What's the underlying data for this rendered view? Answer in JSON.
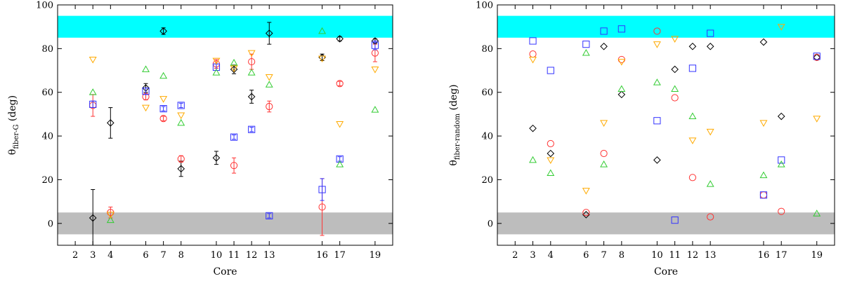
{
  "chart_data": [
    {
      "id": "left",
      "type": "scatter",
      "xlabel": "Core",
      "ylabel_main": "θ",
      "ylabel_sub": "fiber-G",
      "ylabel_unit": " (deg)",
      "ylim": [
        -10,
        100
      ],
      "yticks": [
        0,
        20,
        40,
        60,
        80,
        100
      ],
      "xlim": [
        1,
        20
      ],
      "xticks": [
        2,
        3,
        4,
        6,
        7,
        8,
        10,
        11,
        12,
        13,
        16,
        17,
        19
      ],
      "bands": [
        {
          "name": "parallel-band",
          "y0": 85,
          "y1": 95,
          "color": "#00ffff"
        },
        {
          "name": "perpendicular-band",
          "y0": -5,
          "y1": 5,
          "color": "#bdbdbd"
        }
      ],
      "series": [
        {
          "name": "diamond",
          "marker": "diamond",
          "color": "#000000",
          "points": [
            {
              "x": 3,
              "y": 2.5,
              "err": 13
            },
            {
              "x": 4,
              "y": 46,
              "err": 7
            },
            {
              "x": 6,
              "y": 62,
              "err": 2
            },
            {
              "x": 7,
              "y": 88,
              "err": 1.5
            },
            {
              "x": 8,
              "y": 25,
              "err": 3.5
            },
            {
              "x": 10,
              "y": 30,
              "err": 3
            },
            {
              "x": 11,
              "y": 70.5,
              "err": 2
            },
            {
              "x": 12,
              "y": 58,
              "err": 3
            },
            {
              "x": 13,
              "y": 87,
              "err": 5
            },
            {
              "x": 16,
              "y": 76,
              "err": 1.5
            },
            {
              "x": 17,
              "y": 84.5,
              "err": 1
            },
            {
              "x": 19,
              "y": 83.5,
              "err": 1
            }
          ]
        },
        {
          "name": "circle",
          "marker": "circle",
          "color": "#ff3333",
          "points": [
            {
              "x": 3,
              "y": 54,
              "err": 5
            },
            {
              "x": 4,
              "y": 5,
              "err": 2.5
            },
            {
              "x": 6,
              "y": 58,
              "err": 1.5
            },
            {
              "x": 7,
              "y": 48,
              "err": 1
            },
            {
              "x": 8,
              "y": 29.5,
              "err": 1.5
            },
            {
              "x": 10,
              "y": 73,
              "err": 2
            },
            {
              "x": 11,
              "y": 26.5,
              "err": 3.5
            },
            {
              "x": 12,
              "y": 74,
              "err": 3.5
            },
            {
              "x": 13,
              "y": 53.5,
              "err": 2.5
            },
            {
              "x": 16,
              "y": 7.5,
              "err": 13
            },
            {
              "x": 17,
              "y": 64,
              "err": 1
            },
            {
              "x": 19,
              "y": 78,
              "err": 4
            }
          ]
        },
        {
          "name": "square",
          "marker": "square",
          "color": "#3333ff",
          "points": [
            {
              "x": 3,
              "y": 54.5,
              "err": 1.5
            },
            {
              "x": 6,
              "y": 60.5,
              "err": 1.5
            },
            {
              "x": 7,
              "y": 52.5,
              "err": 1
            },
            {
              "x": 8,
              "y": 54,
              "err": 1
            },
            {
              "x": 10,
              "y": 71.5,
              "err": 1.5
            },
            {
              "x": 11,
              "y": 39.5,
              "err": 1
            },
            {
              "x": 12,
              "y": 43,
              "err": 1
            },
            {
              "x": 13,
              "y": 3.5,
              "err": 1
            },
            {
              "x": 16,
              "y": 15.5,
              "err": 5
            },
            {
              "x": 17,
              "y": 29.5,
              "err": 1
            },
            {
              "x": 19,
              "y": 81.5,
              "err": 2
            }
          ]
        },
        {
          "name": "triangle-up",
          "marker": "triangle-up",
          "color": "#33cc33",
          "points": [
            {
              "x": 3,
              "y": 60
            },
            {
              "x": 4,
              "y": 1.5
            },
            {
              "x": 6,
              "y": 70.5
            },
            {
              "x": 7,
              "y": 67.5
            },
            {
              "x": 8,
              "y": 46
            },
            {
              "x": 10,
              "y": 69
            },
            {
              "x": 11,
              "y": 73.5
            },
            {
              "x": 12,
              "y": 69
            },
            {
              "x": 13,
              "y": 63.5
            },
            {
              "x": 16,
              "y": 88
            },
            {
              "x": 17,
              "y": 27
            },
            {
              "x": 19,
              "y": 52
            }
          ]
        },
        {
          "name": "triangle-down",
          "marker": "triangle-down",
          "color": "#ffaa00",
          "points": [
            {
              "x": 3,
              "y": 75
            },
            {
              "x": 4,
              "y": 4
            },
            {
              "x": 6,
              "y": 53
            },
            {
              "x": 7,
              "y": 57
            },
            {
              "x": 8,
              "y": 49.5
            },
            {
              "x": 10,
              "y": 74.5
            },
            {
              "x": 11,
              "y": 71
            },
            {
              "x": 12,
              "y": 78
            },
            {
              "x": 13,
              "y": 67
            },
            {
              "x": 16,
              "y": 75.5
            },
            {
              "x": 17,
              "y": 45.5
            },
            {
              "x": 19,
              "y": 70.5
            }
          ]
        }
      ]
    },
    {
      "id": "right",
      "type": "scatter",
      "xlabel": "Core",
      "ylabel_main": "θ",
      "ylabel_sub": "fiber-random",
      "ylabel_unit": " (deg)",
      "ylim": [
        -10,
        100
      ],
      "yticks": [
        0,
        20,
        40,
        60,
        80,
        100
      ],
      "xlim": [
        1,
        20
      ],
      "xticks": [
        2,
        3,
        4,
        6,
        7,
        8,
        10,
        11,
        12,
        13,
        16,
        17,
        19
      ],
      "bands": [
        {
          "name": "parallel-band",
          "y0": 85,
          "y1": 95,
          "color": "#00ffff"
        },
        {
          "name": "perpendicular-band",
          "y0": -5,
          "y1": 5,
          "color": "#bdbdbd"
        }
      ],
      "series": [
        {
          "name": "diamond",
          "marker": "diamond",
          "color": "#000000",
          "points": [
            {
              "x": 3,
              "y": 43.5
            },
            {
              "x": 4,
              "y": 32
            },
            {
              "x": 6,
              "y": 4
            },
            {
              "x": 7,
              "y": 81
            },
            {
              "x": 8,
              "y": 59
            },
            {
              "x": 10,
              "y": 29
            },
            {
              "x": 11,
              "y": 70.5
            },
            {
              "x": 12,
              "y": 81
            },
            {
              "x": 13,
              "y": 81
            },
            {
              "x": 16,
              "y": 83
            },
            {
              "x": 17,
              "y": 49
            },
            {
              "x": 19,
              "y": 76
            }
          ]
        },
        {
          "name": "circle",
          "marker": "circle",
          "color": "#ff3333",
          "points": [
            {
              "x": 3,
              "y": 77.5
            },
            {
              "x": 4,
              "y": 36.5
            },
            {
              "x": 6,
              "y": 5
            },
            {
              "x": 7,
              "y": 32
            },
            {
              "x": 8,
              "y": 75
            },
            {
              "x": 10,
              "y": 88
            },
            {
              "x": 11,
              "y": 57.5
            },
            {
              "x": 12,
              "y": 21
            },
            {
              "x": 13,
              "y": 3
            },
            {
              "x": 16,
              "y": 13
            },
            {
              "x": 17,
              "y": 5.5
            },
            {
              "x": 19,
              "y": 76
            }
          ]
        },
        {
          "name": "square",
          "marker": "square",
          "color": "#3333ff",
          "points": [
            {
              "x": 3,
              "y": 83.5
            },
            {
              "x": 4,
              "y": 70
            },
            {
              "x": 6,
              "y": 82
            },
            {
              "x": 7,
              "y": 88
            },
            {
              "x": 8,
              "y": 89
            },
            {
              "x": 10,
              "y": 47
            },
            {
              "x": 11,
              "y": 1.5
            },
            {
              "x": 12,
              "y": 71
            },
            {
              "x": 13,
              "y": 87
            },
            {
              "x": 16,
              "y": 13
            },
            {
              "x": 17,
              "y": 29
            },
            {
              "x": 19,
              "y": 76.5
            }
          ]
        },
        {
          "name": "triangle-up",
          "marker": "triangle-up",
          "color": "#33cc33",
          "points": [
            {
              "x": 3,
              "y": 29
            },
            {
              "x": 4,
              "y": 23
            },
            {
              "x": 6,
              "y": 78
            },
            {
              "x": 7,
              "y": 27
            },
            {
              "x": 8,
              "y": 61.5
            },
            {
              "x": 10,
              "y": 64.5
            },
            {
              "x": 11,
              "y": 61.5
            },
            {
              "x": 12,
              "y": 49
            },
            {
              "x": 13,
              "y": 18
            },
            {
              "x": 16,
              "y": 22
            },
            {
              "x": 17,
              "y": 27
            },
            {
              "x": 19,
              "y": 4.5
            }
          ]
        },
        {
          "name": "triangle-down",
          "marker": "triangle-down",
          "color": "#ffaa00",
          "points": [
            {
              "x": 3,
              "y": 75
            },
            {
              "x": 4,
              "y": 29
            },
            {
              "x": 6,
              "y": 15
            },
            {
              "x": 7,
              "y": 46
            },
            {
              "x": 8,
              "y": 74
            },
            {
              "x": 10,
              "y": 82
            },
            {
              "x": 11,
              "y": 84.5
            },
            {
              "x": 12,
              "y": 38
            },
            {
              "x": 13,
              "y": 42
            },
            {
              "x": 16,
              "y": 46
            },
            {
              "x": 17,
              "y": 90
            },
            {
              "x": 19,
              "y": 48
            }
          ]
        }
      ]
    }
  ]
}
